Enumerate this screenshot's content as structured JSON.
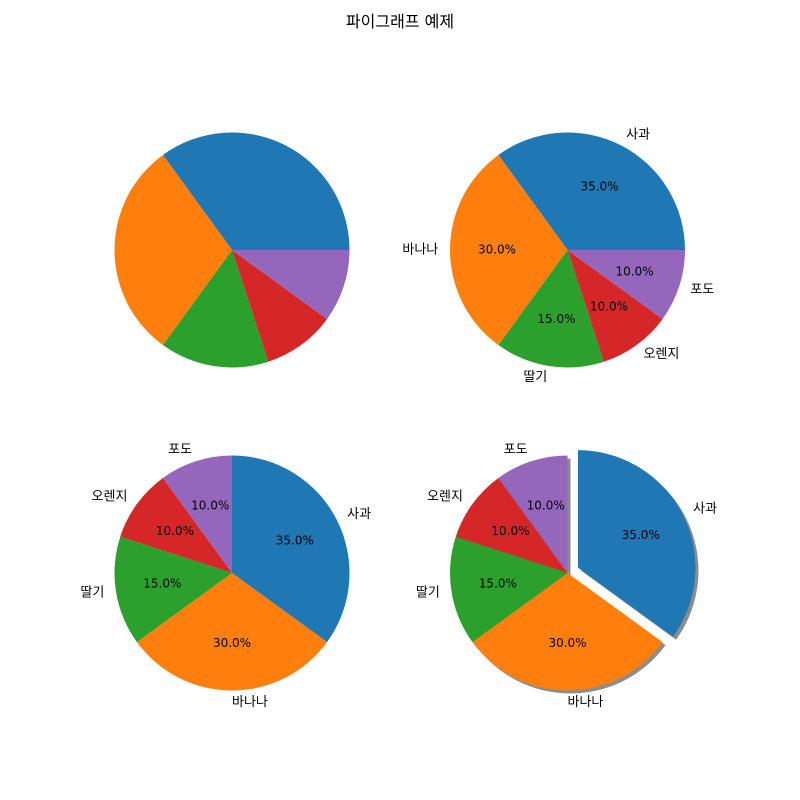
{
  "figure": {
    "title": "파이그래프 예제"
  },
  "chart_data": [
    {
      "type": "pie",
      "labels": [
        "사과",
        "바나나",
        "딸기",
        "오렌지",
        "포도"
      ],
      "values": [
        35,
        30,
        15,
        10,
        10
      ],
      "colors": [
        "#1f77b4",
        "#ff7f0e",
        "#2ca02c",
        "#d62728",
        "#9467bd"
      ],
      "show_labels": false,
      "show_percent": false,
      "start_angle": 0,
      "counterclockwise": true,
      "explode": [
        0,
        0,
        0,
        0,
        0
      ],
      "shadow": false
    },
    {
      "type": "pie",
      "labels": [
        "사과",
        "바나나",
        "딸기",
        "오렌지",
        "포도"
      ],
      "values": [
        35,
        30,
        15,
        10,
        10
      ],
      "percent_labels": [
        "35.0%",
        "30.0%",
        "15.0%",
        "10.0%",
        "10.0%"
      ],
      "colors": [
        "#1f77b4",
        "#ff7f0e",
        "#2ca02c",
        "#d62728",
        "#9467bd"
      ],
      "show_labels": true,
      "show_percent": true,
      "start_angle": 0,
      "counterclockwise": true,
      "explode": [
        0,
        0,
        0,
        0,
        0
      ],
      "shadow": false
    },
    {
      "type": "pie",
      "labels": [
        "사과",
        "바나나",
        "딸기",
        "오렌지",
        "포도"
      ],
      "values": [
        35,
        30,
        15,
        10,
        10
      ],
      "percent_labels": [
        "35.0%",
        "30.0%",
        "15.0%",
        "10.0%",
        "10.0%"
      ],
      "colors": [
        "#1f77b4",
        "#ff7f0e",
        "#2ca02c",
        "#d62728",
        "#9467bd"
      ],
      "show_labels": true,
      "show_percent": true,
      "start_angle": 90,
      "counterclockwise": false,
      "explode": [
        0,
        0,
        0,
        0,
        0
      ],
      "shadow": false
    },
    {
      "type": "pie",
      "labels": [
        "사과",
        "바나나",
        "딸기",
        "오렌지",
        "포도"
      ],
      "values": [
        35,
        30,
        15,
        10,
        10
      ],
      "percent_labels": [
        "35.0%",
        "30.0%",
        "15.0%",
        "10.0%",
        "10.0%"
      ],
      "colors": [
        "#1f77b4",
        "#ff7f0e",
        "#2ca02c",
        "#d62728",
        "#9467bd"
      ],
      "show_labels": true,
      "show_percent": true,
      "start_angle": 90,
      "counterclockwise": false,
      "explode": [
        0.1,
        0,
        0,
        0,
        0
      ],
      "shadow": true
    }
  ]
}
